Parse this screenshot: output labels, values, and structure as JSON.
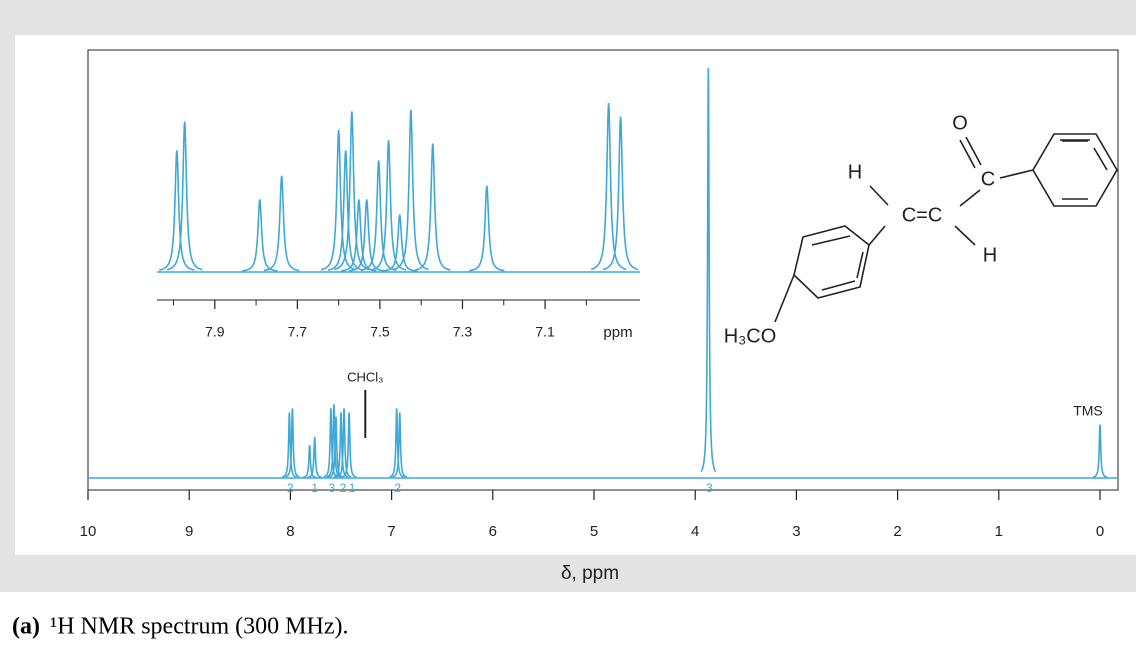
{
  "chart_data": [
    {
      "type": "spectrum",
      "x_label": "δ, ppm",
      "color": "#3ea8d8",
      "xlim": [
        10,
        0
      ],
      "xticks": [
        10,
        9,
        8,
        7,
        6,
        5,
        4,
        3,
        2,
        1,
        0
      ],
      "x": [
        8.01,
        7.98,
        7.81,
        7.76,
        7.6,
        7.57,
        7.55,
        7.5,
        7.47,
        7.42,
        6.95,
        6.92,
        3.87,
        0
      ],
      "values": [
        16,
        17,
        8,
        10,
        17,
        18,
        15,
        16,
        17,
        16,
        17,
        16,
        100,
        13
      ],
      "integrals": {
        "labels": [
          "2",
          "1",
          "3",
          "2",
          "1",
          "2",
          "3"
        ],
        "x": [
          8.0,
          7.76,
          7.59,
          7.48,
          7.39,
          6.94,
          3.86
        ]
      },
      "annotations": [
        {
          "text": "CHCl₃",
          "x": 7.26
        },
        {
          "text": "TMS",
          "x": 0
        }
      ]
    },
    {
      "type": "spectrum",
      "x_label": "ppm",
      "color": "#3ea8d8",
      "xlim": [
        8.04,
        6.87
      ],
      "xticks": [
        7.9,
        7.7,
        7.5,
        7.3,
        7.1
      ],
      "minor_xticks": [
        8.0,
        7.8,
        7.6,
        7.4,
        7.2,
        7.0
      ],
      "x": [
        7.992,
        7.973,
        7.791,
        7.738,
        7.6,
        7.583,
        7.568,
        7.551,
        7.532,
        7.503,
        7.479,
        7.452,
        7.425,
        7.372,
        7.241,
        6.946,
        6.917
      ],
      "values": [
        72,
        89,
        43,
        57,
        84,
        72,
        95,
        43,
        43,
        66,
        78,
        34,
        96,
        76,
        51,
        100,
        92
      ]
    }
  ],
  "structure": {
    "labels": [
      "O",
      "C",
      "H",
      "C=C",
      "H",
      "H₃CO"
    ]
  },
  "caption": {
    "label": "(a)",
    "text": "¹H NMR spectrum (300 MHz)."
  }
}
